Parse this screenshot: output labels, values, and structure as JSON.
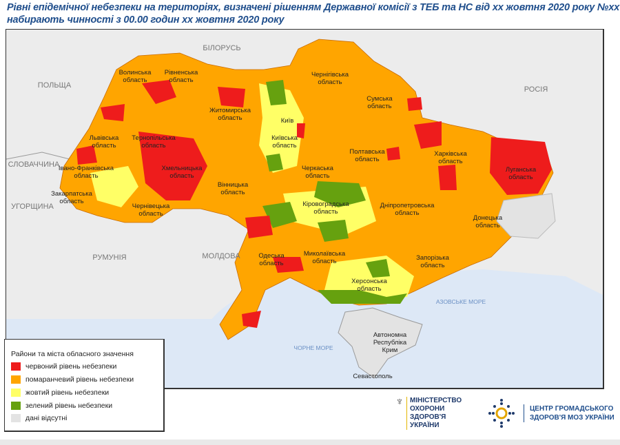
{
  "title": {
    "line1": "Рівні епідемічної небезпеки на територіях, визначені рішенням Державної комісії з ТЕБ та НС від хх жовтня 2020 року №хх",
    "line2": "набирають чинності з 00.00 годин хх жовтня 2020 року"
  },
  "colors": {
    "red": "#ee1c1c",
    "orange": "#ffa500",
    "yellow": "#ffff66",
    "green": "#66a10f",
    "nodata": "#e3e3e3",
    "sea": "#dde8f6",
    "land": "#ececec"
  },
  "countries": [
    "БІЛОРУСЬ",
    "ПОЛЬЩА",
    "РОСІЯ",
    "СЛОВАЧЧИНА",
    "УГОРЩИНА",
    "РУМУНІЯ",
    "МОЛДОВА"
  ],
  "seas": [
    "АЗОВСЬКЕ МОРЕ",
    "ЧОРНЕ МОРЕ"
  ],
  "regions": [
    "Волинська область",
    "Рівненська область",
    "Житомирська область",
    "Чернігівська область",
    "Сумська область",
    "Львівська область",
    "Тернопільська область",
    "Хмельницька область",
    "Київ",
    "Київська область",
    "Полтавська область",
    "Харківська область",
    "Луганська область",
    "Івано-Франківська область",
    "Черкаська область",
    "Вінницька область",
    "Закарпатська область",
    "Чернівецька область",
    "Кіровоградська область",
    "Дніпропетровська область",
    "Донецька область",
    "Одеська область",
    "Миколаївська область",
    "Запорізька область",
    "Херсонська область",
    "Автономна Республіка Крим",
    "Севастополь"
  ],
  "legend": {
    "title": "Райони та міста обласного значення",
    "items": [
      {
        "label": "червоний рівень небезпеки",
        "color": "#ee1c1c"
      },
      {
        "label": "помаранчевий рівень небезпеки",
        "color": "#ffa500"
      },
      {
        "label": "жовтий рівень небезпеки",
        "color": "#ffff66"
      },
      {
        "label": "зелений рівень небезпеки",
        "color": "#66a10f"
      },
      {
        "label": "дані відсутні",
        "color": "#e3e3e3"
      }
    ]
  },
  "logos": {
    "moz": [
      "МІНІСТЕРСТВО",
      "ОХОРОНИ",
      "ЗДОРОВ'Я",
      "УКРАЇНИ"
    ],
    "phc": [
      "ЦЕНТР ГРОМАДСЬКОГО",
      "ЗДОРОВ'Я МОЗ УКРАЇНИ"
    ]
  }
}
